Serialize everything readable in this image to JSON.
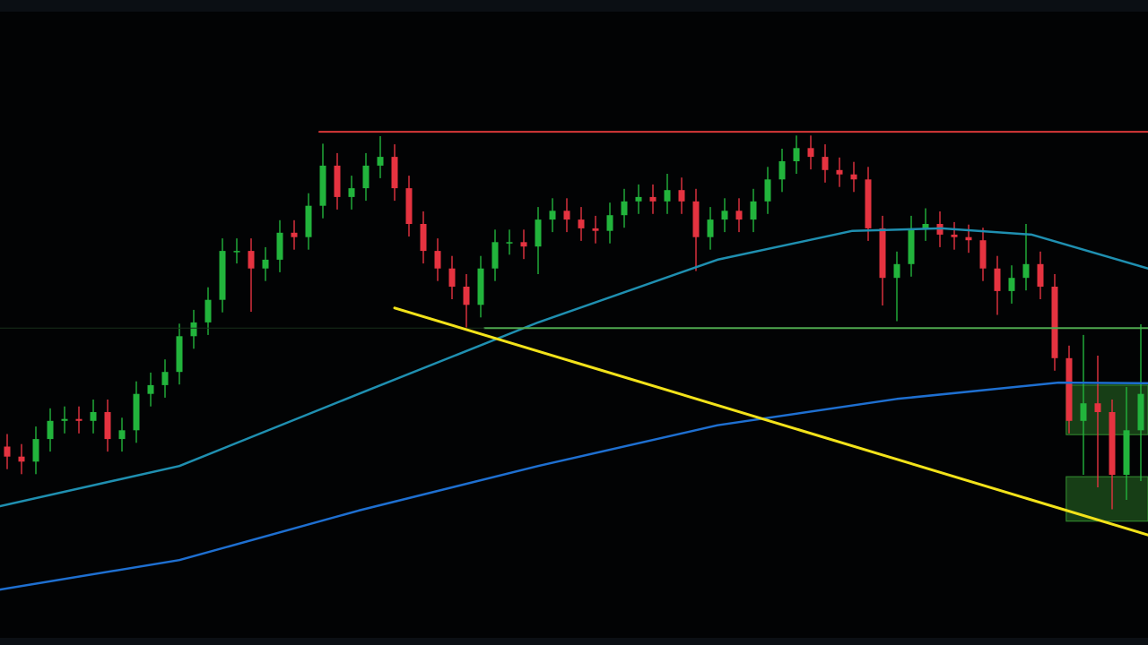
{
  "chart_data": {
    "type": "candlestick",
    "xlim": [
      -0.5,
      79.5
    ],
    "ylim": [
      0,
      100
    ],
    "up_color": "#22b43c",
    "down_color": "#e53340",
    "open": [
      30.5,
      28.9,
      28.1,
      31.7,
      34.6,
      34.9,
      34.6,
      36,
      31.7,
      33.1,
      38.9,
      40.3,
      42.4,
      48.1,
      50.3,
      53.9,
      61.7,
      61.7,
      58.9,
      60.3,
      64.6,
      63.9,
      68.9,
      75.3,
      70.3,
      71.7,
      75.3,
      76.7,
      71.7,
      66,
      61.7,
      58.9,
      56,
      53.1,
      58.9,
      63.1,
      63.1,
      62.4,
      66.7,
      68.1,
      66.7,
      65.3,
      64.9,
      67.4,
      69.6,
      70.3,
      69.6,
      71.4,
      69.6,
      63.9,
      66.7,
      68.1,
      66.7,
      69.6,
      73.1,
      76,
      78.1,
      76.7,
      74.6,
      73.9,
      73.1,
      65.3,
      57.4,
      59.6,
      65.3,
      66,
      64.3,
      63.9,
      63.4,
      58.9,
      55.3,
      57.4,
      59.6,
      56,
      44.6,
      34.6,
      37.4,
      36,
      26,
      33.1
    ],
    "high": [
      32.5,
      30.9,
      33.7,
      36.6,
      36.9,
      36.9,
      38,
      38,
      35.1,
      40.9,
      42.3,
      44.4,
      50.1,
      52.3,
      55.9,
      63.7,
      63.7,
      63.7,
      62.3,
      66.6,
      66.6,
      70.9,
      78.8,
      77.3,
      73.7,
      77.3,
      80,
      78.7,
      73.7,
      68,
      63.7,
      60.9,
      58,
      60.9,
      65.1,
      65.1,
      65.1,
      68.7,
      70.1,
      70.1,
      68.7,
      67.3,
      69.4,
      71.6,
      72.3,
      72.3,
      74,
      73.4,
      71.6,
      68.7,
      70.1,
      70.1,
      71.6,
      75.1,
      78,
      80.1,
      80.1,
      78.7,
      76.6,
      75.9,
      75.1,
      67.3,
      61.6,
      67.3,
      68.5,
      68,
      66.3,
      65.9,
      65.4,
      60.9,
      59.4,
      66,
      61.6,
      58,
      46.6,
      48.3,
      45,
      38,
      40,
      50
    ],
    "low": [
      26.9,
      26.1,
      26.1,
      29.7,
      32.6,
      32.6,
      32.6,
      29.7,
      29.7,
      31.1,
      36.9,
      38.3,
      40.4,
      46.1,
      48.3,
      51.9,
      59.7,
      52,
      56.9,
      58.3,
      61.9,
      61.9,
      66.9,
      68.3,
      68.3,
      69.7,
      73.3,
      69.7,
      64,
      59.7,
      56.9,
      54,
      49.5,
      51.1,
      56.9,
      61.1,
      60.4,
      58,
      64.7,
      64.7,
      63.3,
      62.9,
      62.9,
      65.4,
      67.6,
      67.6,
      67.6,
      67.6,
      58.5,
      61.9,
      64.7,
      64.7,
      64.7,
      67.6,
      71.1,
      74,
      74.7,
      72.6,
      71.9,
      71.1,
      63.3,
      53,
      50.5,
      57.6,
      63.3,
      62.3,
      61.9,
      61.4,
      56.9,
      51.5,
      53.3,
      55.4,
      54,
      42.6,
      32.6,
      26,
      24,
      20.5,
      22,
      25
    ],
    "close": [
      28.9,
      28.1,
      31.7,
      34.6,
      34.9,
      34.6,
      36,
      31.7,
      33.1,
      38.9,
      40.3,
      42.4,
      48.1,
      50.3,
      53.9,
      61.7,
      61.7,
      58.9,
      60.3,
      64.6,
      63.9,
      68.9,
      75.3,
      70.3,
      71.7,
      75.3,
      76.7,
      71.7,
      66,
      61.7,
      58.9,
      56,
      53.1,
      58.9,
      63.1,
      63.1,
      62.4,
      66.7,
      68.1,
      66.7,
      65.3,
      64.9,
      67.4,
      69.6,
      70.3,
      69.6,
      71.4,
      69.6,
      63.9,
      66.7,
      68.1,
      66.7,
      69.6,
      73.1,
      76,
      78.1,
      76.7,
      74.6,
      73.9,
      73.1,
      65.3,
      57.4,
      59.6,
      65.3,
      66,
      64.3,
      63.9,
      63.4,
      58.9,
      55.3,
      57.4,
      59.6,
      56,
      44.6,
      34.6,
      37.4,
      36,
      26,
      33.1,
      38.9
    ],
    "zones": [
      {
        "color": "#3fae3a",
        "x": [
          73.8,
          79.5
        ],
        "values": [
          32.4,
          40.3
        ]
      },
      {
        "color": "#3fae3a",
        "x": [
          73.8,
          79.5
        ],
        "values": [
          18.6,
          25.7
        ]
      }
    ],
    "lines": [
      {
        "color": "#1f8fb0",
        "width": 2.5,
        "x": [
          -0.5,
          12,
          24.5,
          37,
          49.5,
          58.9,
          65.1,
          71.4,
          79.5
        ],
        "values": [
          21,
          27.4,
          38.9,
          50.3,
          60.3,
          64.9,
          65.3,
          64.3,
          58.9
        ]
      },
      {
        "color": "#1e6fd0",
        "width": 2.5,
        "x": [
          -0.5,
          12,
          24.5,
          37,
          49.5,
          62,
          73.25,
          79.5
        ],
        "values": [
          7.7,
          12.4,
          20.3,
          27.4,
          33.9,
          38.1,
          40.7,
          40.6
        ]
      },
      {
        "color": "#d83838",
        "width": 2,
        "x": [
          21.75,
          79.5
        ],
        "values": [
          80.7,
          80.7
        ]
      },
      {
        "color": "#4ea84e",
        "width": 2,
        "x": [
          33.25,
          79.5
        ],
        "values": [
          49.4,
          49.4
        ]
      },
      {
        "color": "#17301a",
        "width": 1,
        "x": [
          -0.5,
          33.25
        ],
        "values": [
          49.4,
          49.4
        ]
      },
      {
        "color": "#f2e21a",
        "width": 3,
        "x": [
          27,
          79.5
        ],
        "values": [
          52.6,
          16.4
        ]
      }
    ]
  }
}
